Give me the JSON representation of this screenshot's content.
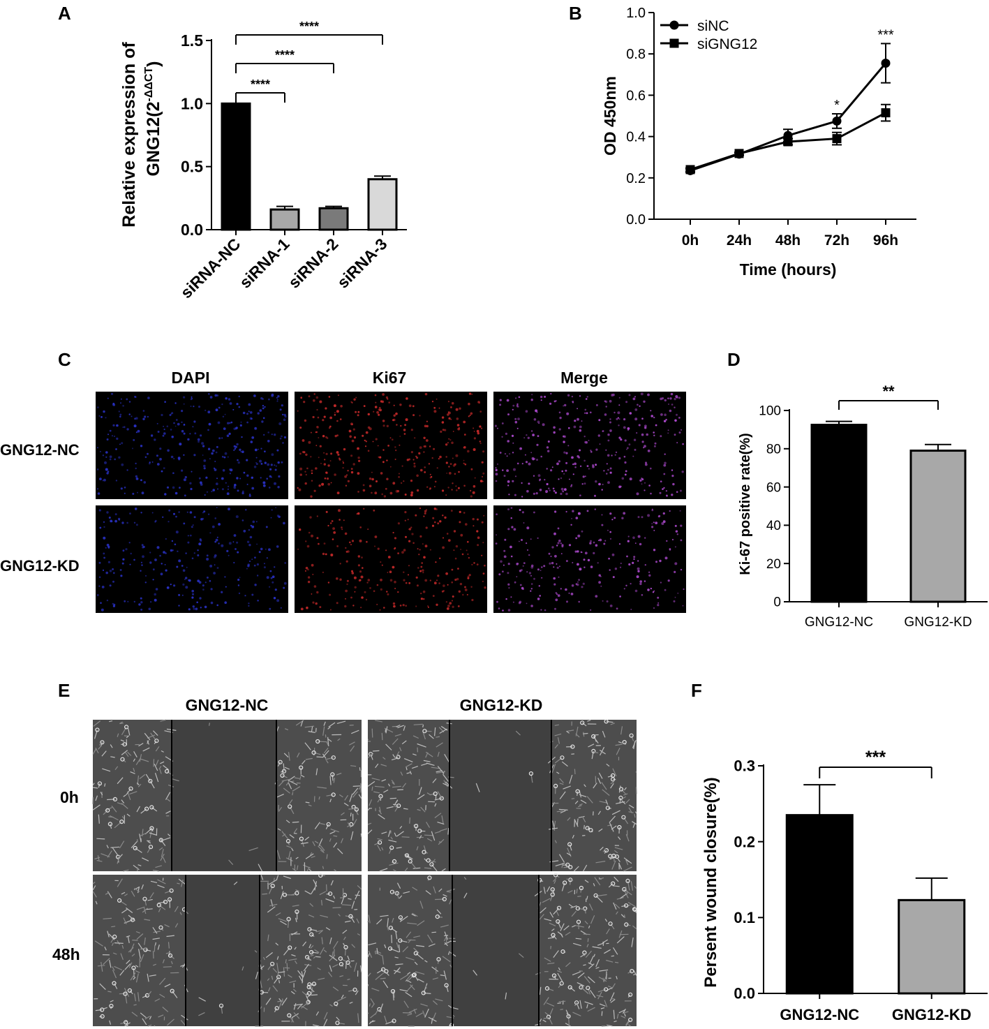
{
  "panels": {
    "A": {
      "letter": "A"
    },
    "B": {
      "letter": "B"
    },
    "C": {
      "letter": "C",
      "columns": [
        "DAPI",
        "Ki67",
        "Merge"
      ],
      "rows": [
        "GNG12-NC",
        "GNG12-KD"
      ],
      "image_colors": {
        "DAPI": "#2a32c8",
        "Ki67": "#c82a2a",
        "Merge": "#b04bd2",
        "background": "#000000"
      }
    },
    "D": {
      "letter": "D"
    },
    "E": {
      "letter": "E",
      "columns": [
        "GNG12-NC",
        "GNG12-KD"
      ],
      "rows": [
        "0h",
        "48h"
      ]
    },
    "F": {
      "letter": "F"
    }
  },
  "chart_data": [
    {
      "panel": "A",
      "type": "bar",
      "categories": [
        "siRNA-NC",
        "siRNA-1",
        "siRNA-2",
        "siRNA-3"
      ],
      "values": [
        1.0,
        0.16,
        0.17,
        0.4
      ],
      "errors": [
        0.0,
        0.025,
        0.015,
        0.025
      ],
      "colors": [
        "#000000",
        "#a8a8a8",
        "#7a7a7a",
        "#d9d9d9"
      ],
      "ylabel_line1": "Relative expression of",
      "ylabel_line2": "GNG12(2",
      "ylabel_sup": "-ΔΔCT",
      "ylabel_close": ")",
      "ylim": [
        0,
        1.5
      ],
      "yticks": [
        "0.0",
        "0.5",
        "1.0",
        "1.5"
      ],
      "significance": [
        {
          "from": 0,
          "to": 1,
          "label": "****"
        },
        {
          "from": 0,
          "to": 2,
          "label": "****"
        },
        {
          "from": 0,
          "to": 3,
          "label": "****"
        }
      ]
    },
    {
      "panel": "B",
      "type": "line",
      "x": [
        "0h",
        "24h",
        "48h",
        "72h",
        "96h"
      ],
      "series": [
        {
          "name": "siNC",
          "marker": "circle",
          "values": [
            0.235,
            0.315,
            0.405,
            0.475,
            0.755
          ],
          "errors": [
            0.008,
            0.006,
            0.03,
            0.035,
            0.095
          ]
        },
        {
          "name": "siGNG12",
          "marker": "square",
          "values": [
            0.24,
            0.318,
            0.375,
            0.39,
            0.515
          ],
          "errors": [
            0.008,
            0.006,
            0.015,
            0.03,
            0.04
          ]
        }
      ],
      "xlabel": "Time (hours)",
      "ylabel": "OD 450nm",
      "ylim": [
        0,
        1.0
      ],
      "yticks": [
        "0.0",
        "0.2",
        "0.4",
        "0.6",
        "0.8",
        "1.0"
      ],
      "legend_position": "top-left",
      "annotations": [
        {
          "x": "72h",
          "label": "*"
        },
        {
          "x": "96h",
          "label": "***"
        }
      ]
    },
    {
      "panel": "D",
      "type": "bar",
      "categories": [
        "GNG12-NC",
        "GNG12-KD"
      ],
      "values": [
        92.5,
        79.0
      ],
      "errors": [
        1.8,
        3.2
      ],
      "colors": [
        "#000000",
        "#a8a8a8"
      ],
      "ylabel": "Ki-67 positive rate(%)",
      "ylim": [
        0,
        100
      ],
      "yticks": [
        "0",
        "20",
        "40",
        "60",
        "80",
        "100"
      ],
      "significance": [
        {
          "from": 0,
          "to": 1,
          "label": "**"
        }
      ]
    },
    {
      "panel": "F",
      "type": "bar",
      "categories": [
        "GNG12-NC",
        "GNG12-KD"
      ],
      "values": [
        0.235,
        0.123
      ],
      "errors": [
        0.04,
        0.029
      ],
      "colors": [
        "#000000",
        "#a8a8a8"
      ],
      "ylabel": "Persent wound closure(%)",
      "ylim": [
        0,
        0.3
      ],
      "yticks": [
        "0.0",
        "0.1",
        "0.2",
        "0.3"
      ],
      "significance": [
        {
          "from": 0,
          "to": 1,
          "label": "***"
        }
      ]
    }
  ]
}
